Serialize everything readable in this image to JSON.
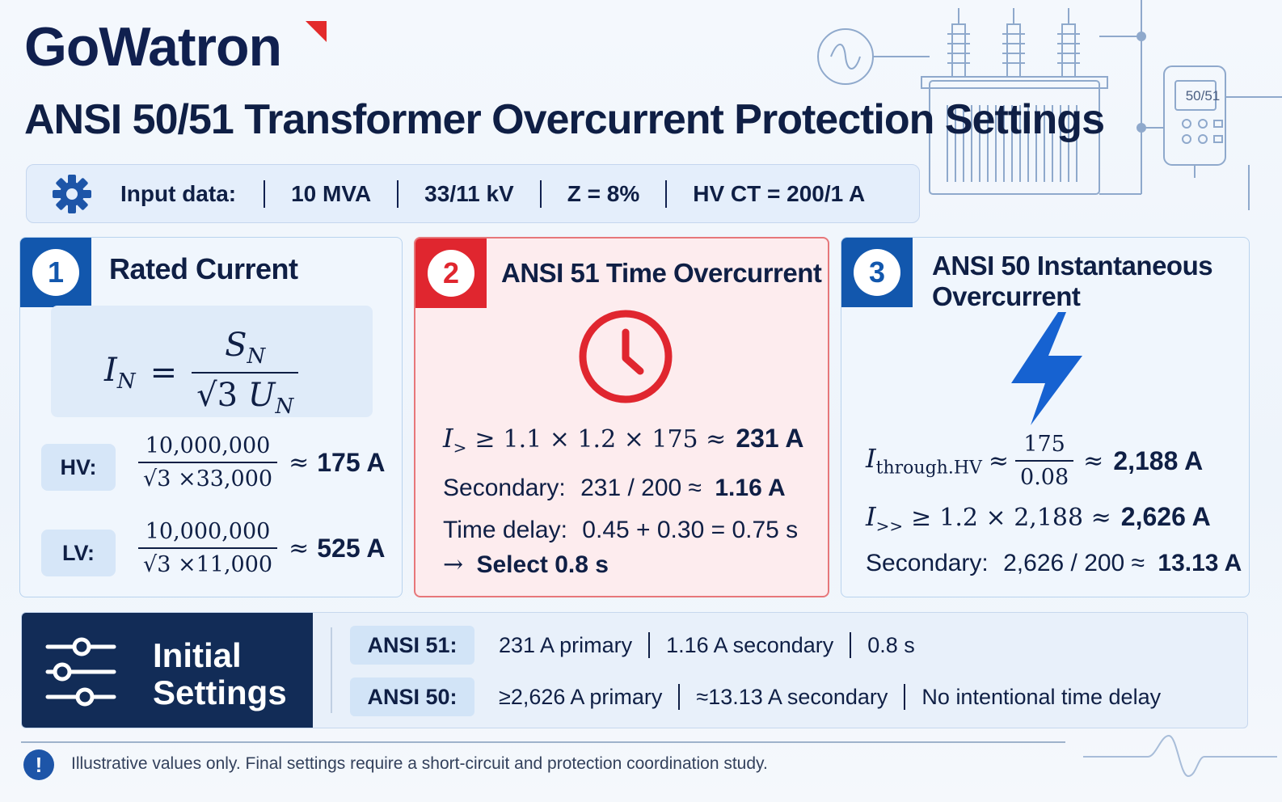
{
  "brand": "GoWatron",
  "title": "ANSI 50/51 Transformer Overcurrent Protection Settings",
  "relay_display": "50/51",
  "input": {
    "label": "Input data:",
    "values": [
      "10 MVA",
      "33/11 kV",
      "Z = 8%",
      "HV CT = 200/1 A"
    ]
  },
  "card1": {
    "number": "1",
    "title": "Rated Current",
    "hv": {
      "label": "HV:",
      "num": "10,000,000",
      "den": "33,000",
      "result": "175 A"
    },
    "lv": {
      "label": "LV:",
      "num": "10,000,000",
      "den": "11,000",
      "result": "525 A"
    }
  },
  "card2": {
    "number": "2",
    "title": "ANSI 51 Time Overcurrent",
    "pickup_expr": "1.1 × 1.2 × 175 ≈",
    "pickup_result": "231 A",
    "secondary_label": "Secondary:",
    "secondary_expr": "231 / 200 ≈",
    "secondary_result": "1.16 A",
    "delay_label": "Time delay:",
    "delay_expr": "0.45 + 0.30 = 0.75 s",
    "select": "Select 0.8 s"
  },
  "card3": {
    "number": "3",
    "title_line1": "ANSI 50 Instantaneous",
    "title_line2": "Overcurrent",
    "through_num": "175",
    "through_den": "0.08",
    "through_result": "2,188 A",
    "pickup_expr": "1.2 × 2,188 ≈",
    "pickup_result": "2,626 A",
    "secondary_label": "Secondary:",
    "secondary_expr": "2,626 / 200 ≈",
    "secondary_result": "13.13 A"
  },
  "settings": {
    "label_line1": "Initial",
    "label_line2": "Settings",
    "rows": [
      {
        "tag": "ANSI 51:",
        "parts": [
          "231 A primary",
          "1.16 A secondary",
          "0.8 s"
        ]
      },
      {
        "tag": "ANSI 50:",
        "parts": [
          "≥2,626 A primary",
          "≈13.13 A secondary",
          "No intentional time delay"
        ]
      }
    ]
  },
  "note": "Illustrative values only. Final settings require a short-circuit and protection coordination study.",
  "colors": {
    "navy": "#10204f",
    "blue": "#1257ad",
    "red": "#e0262f",
    "accent_red": "#e32b2b",
    "settings_dark": "#122c57"
  }
}
